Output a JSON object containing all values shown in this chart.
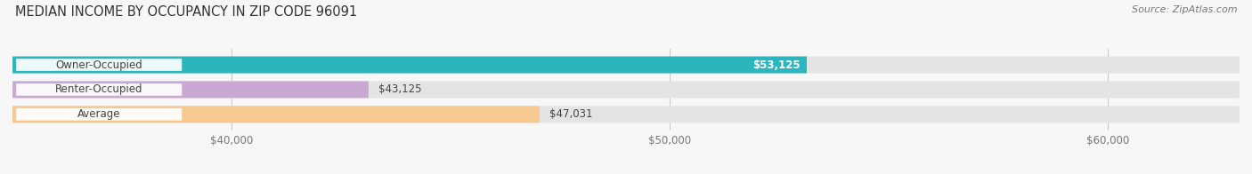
{
  "title": "MEDIAN INCOME BY OCCUPANCY IN ZIP CODE 96091",
  "source": "Source: ZipAtlas.com",
  "categories": [
    "Owner-Occupied",
    "Renter-Occupied",
    "Average"
  ],
  "values": [
    53125,
    43125,
    47031
  ],
  "bar_colors": [
    "#2bb5bc",
    "#c9a8d4",
    "#f5c990"
  ],
  "bar_bg_color": "#e4e4e4",
  "label_texts": [
    "$53,125",
    "$43,125",
    "$47,031"
  ],
  "label_inside": [
    true,
    false,
    false
  ],
  "xlim_min": 35000,
  "xlim_max": 63000,
  "xstart": 35000,
  "xticks": [
    40000,
    50000,
    60000
  ],
  "xtick_labels": [
    "$40,000",
    "$50,000",
    "$60,000"
  ],
  "bar_height": 0.68,
  "bg_color": "#f7f7f7",
  "title_fontsize": 10.5,
  "source_fontsize": 8,
  "label_fontsize": 8.5,
  "cat_fontsize": 8.5,
  "cat_badge_color": "#ffffff",
  "grid_color": "#cccccc"
}
